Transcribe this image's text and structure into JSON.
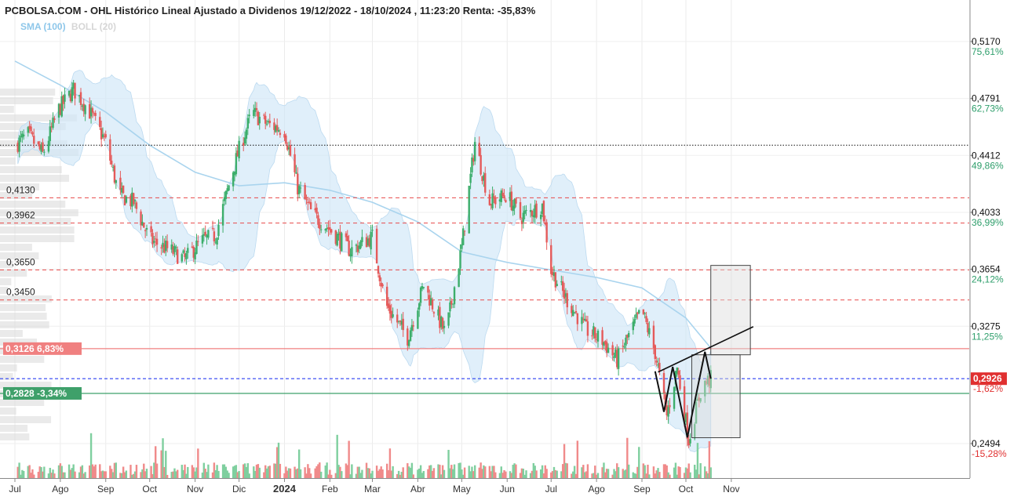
{
  "header": {
    "title": "PCBOLSA.COM - OHL Histórico Lineal Ajustado a Dividenos 19/12/2022 - 18/10/2024 , 11:23:20 Renta: -35,83%",
    "legend_sma": "SMA (100)",
    "legend_boll": "BOLL (20)"
  },
  "chart_data": {
    "type": "candlestick",
    "x_range": [
      "2023-07-01",
      "2024-11-15"
    ],
    "y_range": [
      0.2494,
      0.517
    ],
    "x_ticks": [
      {
        "date": "2023-07-01",
        "label": "Jul",
        "bold": false
      },
      {
        "date": "2023-08-01",
        "label": "Ago",
        "bold": false
      },
      {
        "date": "2023-09-01",
        "label": "Sep",
        "bold": false
      },
      {
        "date": "2023-10-01",
        "label": "Oct",
        "bold": false
      },
      {
        "date": "2023-11-01",
        "label": "Nov",
        "bold": false
      },
      {
        "date": "2023-12-01",
        "label": "Dic",
        "bold": false
      },
      {
        "date": "2024-01-01",
        "label": "2024",
        "bold": true
      },
      {
        "date": "2024-02-01",
        "label": "Feb",
        "bold": false
      },
      {
        "date": "2024-03-01",
        "label": "Mar",
        "bold": false
      },
      {
        "date": "2024-04-01",
        "label": "Abr",
        "bold": false
      },
      {
        "date": "2024-05-01",
        "label": "May",
        "bold": false
      },
      {
        "date": "2024-06-01",
        "label": "Jun",
        "bold": false
      },
      {
        "date": "2024-07-01",
        "label": "Jul",
        "bold": false
      },
      {
        "date": "2024-08-01",
        "label": "Ago",
        "bold": false
      },
      {
        "date": "2024-09-01",
        "label": "Sep",
        "bold": false
      },
      {
        "date": "2024-10-01",
        "label": "Oct",
        "bold": false
      },
      {
        "date": "2024-11-01",
        "label": "Nov",
        "bold": false
      }
    ],
    "right_axis": [
      {
        "price": 0.517,
        "label": "0,5170",
        "pct": "75,61%",
        "pct_color": "#2e9e6b"
      },
      {
        "price": 0.4791,
        "label": "0,4791",
        "pct": "62,73%",
        "pct_color": "#2e9e6b"
      },
      {
        "price": 0.4412,
        "label": "0,4412",
        "pct": "49,86%",
        "pct_color": "#2e9e6b"
      },
      {
        "price": 0.4033,
        "label": "0,4033",
        "pct": "36,99%",
        "pct_color": "#2e9e6b"
      },
      {
        "price": 0.3654,
        "label": "0,3654",
        "pct": "24,12%",
        "pct_color": "#2e9e6b"
      },
      {
        "price": 0.3275,
        "label": "0,3275",
        "pct": "11,25%",
        "pct_color": "#2e9e6b"
      },
      {
        "price": 0.2494,
        "label": "0,2494",
        "pct": "-15,28%",
        "pct_color": "#e03030"
      }
    ],
    "current_price": {
      "price": 0.2926,
      "label": "0,2926",
      "pct": "-1,62%",
      "color": "#e03030"
    },
    "horizontal_levels": [
      {
        "price": 0.448,
        "style": "black-dotted",
        "label": ""
      },
      {
        "price": 0.413,
        "style": "red-dashed",
        "label": "0,4130"
      },
      {
        "price": 0.3962,
        "style": "red-dashed",
        "label": "0,3962"
      },
      {
        "price": 0.365,
        "style": "red-dashed",
        "label": "0,3650"
      },
      {
        "price": 0.345,
        "style": "red-dashed",
        "label": "0,3450"
      },
      {
        "price": 0.2926,
        "style": "blue-dashed",
        "label": ""
      }
    ],
    "tag_levels": [
      {
        "price": 0.3126,
        "label": "0,3126  6,83%",
        "color": "#f08080"
      },
      {
        "price": 0.2828,
        "label": "0,2828  -3,34%",
        "color": "#3fa06a"
      }
    ],
    "price_path": [
      [
        "2023-07-01",
        0.448
      ],
      [
        "2023-07-10",
        0.455
      ],
      [
        "2023-07-20",
        0.442
      ],
      [
        "2023-07-31",
        0.472
      ],
      [
        "2023-08-10",
        0.485
      ],
      [
        "2023-08-20",
        0.472
      ],
      [
        "2023-09-01",
        0.45
      ],
      [
        "2023-09-10",
        0.415
      ],
      [
        "2023-09-20",
        0.41
      ],
      [
        "2023-10-01",
        0.385
      ],
      [
        "2023-10-15",
        0.378
      ],
      [
        "2023-10-25",
        0.372
      ],
      [
        "2023-11-05",
        0.384
      ],
      [
        "2023-11-15",
        0.388
      ],
      [
        "2023-11-25",
        0.425
      ],
      [
        "2023-12-01",
        0.445
      ],
      [
        "2023-12-10",
        0.47
      ],
      [
        "2023-12-20",
        0.462
      ],
      [
        "2024-01-01",
        0.458
      ],
      [
        "2024-01-10",
        0.42
      ],
      [
        "2024-01-20",
        0.402
      ],
      [
        "2024-02-01",
        0.392
      ],
      [
        "2024-02-15",
        0.378
      ],
      [
        "2024-03-01",
        0.387
      ],
      [
        "2024-03-10",
        0.342
      ],
      [
        "2024-03-25",
        0.32
      ],
      [
        "2024-04-05",
        0.355
      ],
      [
        "2024-04-20",
        0.322
      ],
      [
        "2024-05-01",
        0.38
      ],
      [
        "2024-05-10",
        0.45
      ],
      [
        "2024-05-20",
        0.41
      ],
      [
        "2024-06-01",
        0.415
      ],
      [
        "2024-06-10",
        0.4
      ],
      [
        "2024-06-25",
        0.408
      ],
      [
        "2024-07-01",
        0.365
      ],
      [
        "2024-07-10",
        0.348
      ],
      [
        "2024-07-25",
        0.325
      ],
      [
        "2024-08-05",
        0.318
      ],
      [
        "2024-08-15",
        0.305
      ],
      [
        "2024-08-25",
        0.325
      ],
      [
        "2024-09-01",
        0.338
      ],
      [
        "2024-09-10",
        0.31
      ],
      [
        "2024-09-18",
        0.268
      ],
      [
        "2024-09-25",
        0.3
      ],
      [
        "2024-10-03",
        0.252
      ],
      [
        "2024-10-12",
        0.288
      ],
      [
        "2024-10-18",
        0.2926
      ]
    ],
    "sma_100_path": [
      [
        "2023-07-01",
        0.504
      ],
      [
        "2023-08-01",
        0.488
      ],
      [
        "2023-09-01",
        0.47
      ],
      [
        "2023-10-01",
        0.448
      ],
      [
        "2023-11-01",
        0.43
      ],
      [
        "2023-12-01",
        0.421
      ],
      [
        "2024-01-01",
        0.423
      ],
      [
        "2024-02-01",
        0.418
      ],
      [
        "2024-03-01",
        0.41
      ],
      [
        "2024-04-01",
        0.397
      ],
      [
        "2024-05-01",
        0.377
      ],
      [
        "2024-06-01",
        0.37
      ],
      [
        "2024-07-01",
        0.365
      ],
      [
        "2024-08-01",
        0.36
      ],
      [
        "2024-09-01",
        0.353
      ],
      [
        "2024-10-01",
        0.333
      ],
      [
        "2024-10-18",
        0.313
      ]
    ],
    "trendlines": [
      {
        "from": [
          "2024-09-12",
          0.297
        ],
        "to": [
          "2024-11-16",
          0.3272
        ]
      }
    ],
    "pattern_lines": [
      [
        "2024-09-10",
        0.2975
      ],
      [
        "2024-09-16",
        0.2705
      ],
      [
        "2024-09-22",
        0.3005
      ],
      [
        "2024-10-02",
        0.2535
      ],
      [
        "2024-10-14",
        0.3105
      ],
      [
        "2024-10-18",
        0.2926
      ]
    ],
    "target_boxes": [
      {
        "from": [
          "2024-10-18",
          0.368
        ],
        "to": [
          "2024-11-14",
          0.3085
        ]
      },
      {
        "from": [
          "2024-10-05",
          0.3085
        ],
        "to": [
          "2024-11-07",
          0.2533
        ]
      }
    ],
    "grid": true
  }
}
